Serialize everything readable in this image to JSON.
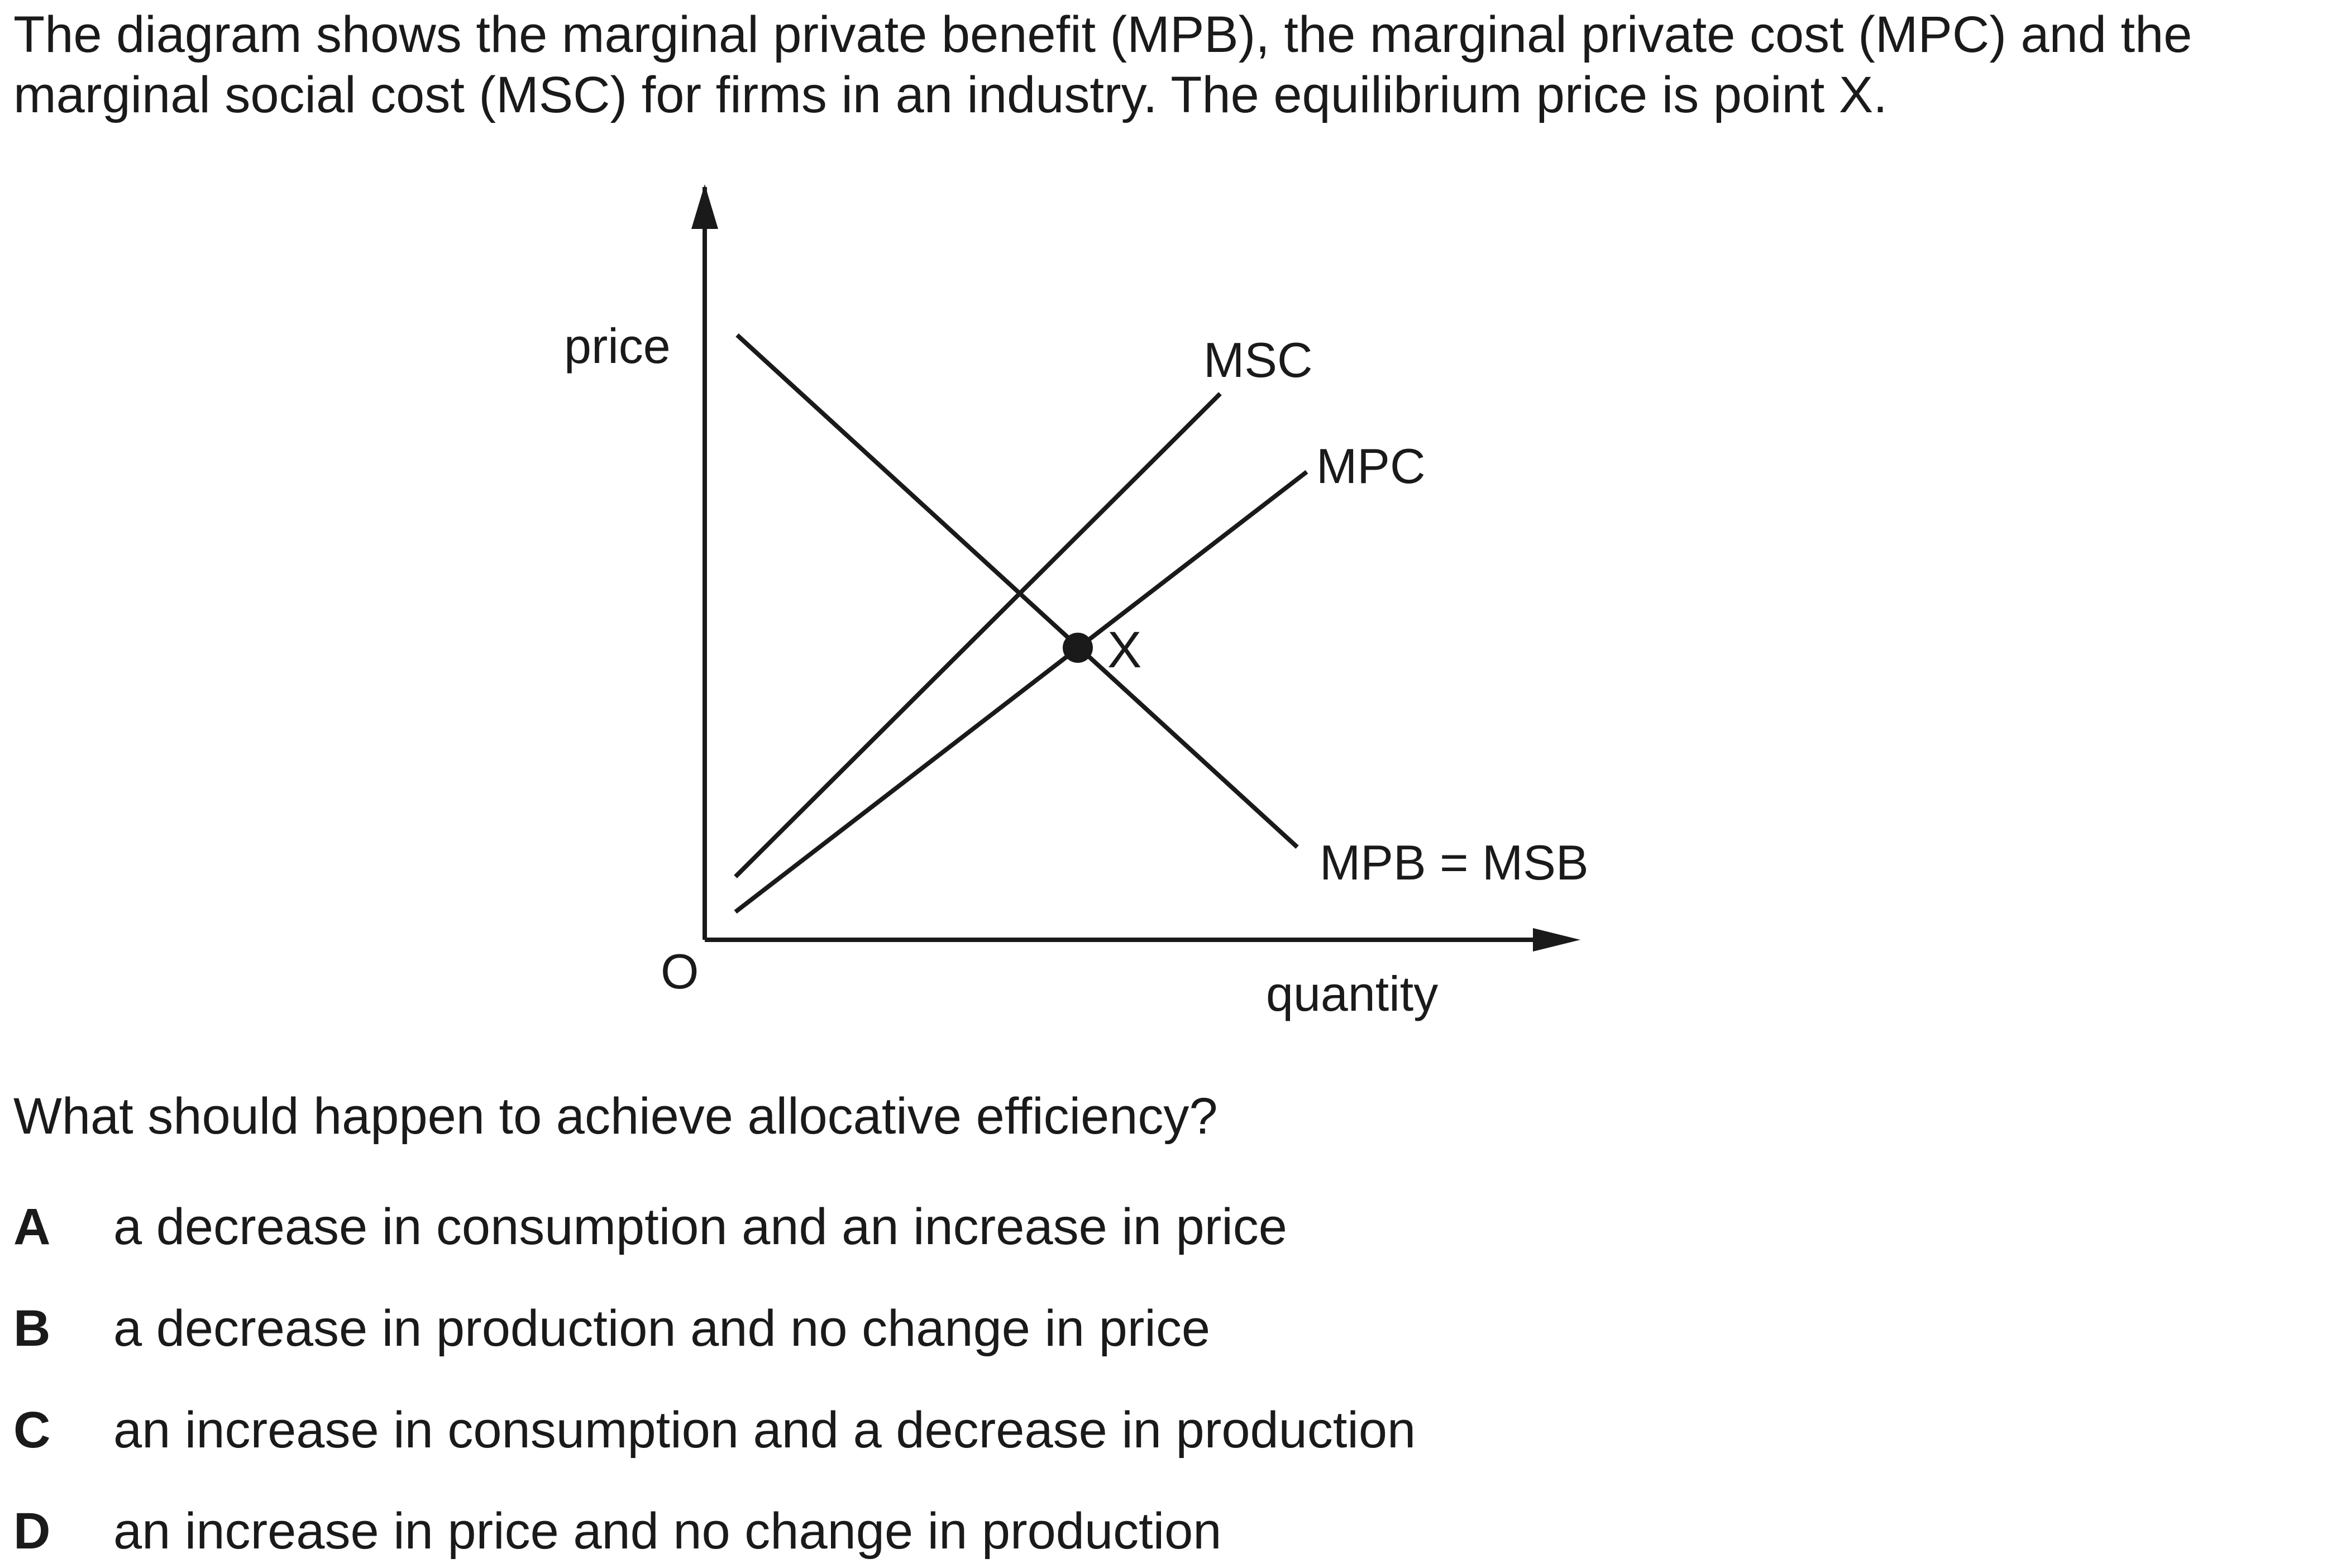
{
  "intro": {
    "line1": "The diagram shows the marginal private benefit (MPB), the marginal private cost (MPC) and the",
    "line2": "marginal social cost (MSC) for firms in an industry. The equilibrium price is point X."
  },
  "diagram": {
    "y_axis_label": "price",
    "x_axis_label": "quantity",
    "origin_label": "O",
    "curves": [
      {
        "id": "msc",
        "label": "MSC"
      },
      {
        "id": "mpc",
        "label": "MPC"
      },
      {
        "id": "mpb",
        "label": "MPB = MSB"
      }
    ],
    "point_label": "X"
  },
  "question": "What should happen to achieve allocative efficiency?",
  "options": [
    {
      "letter": "A",
      "text": "a decrease in consumption and an increase in price"
    },
    {
      "letter": "B",
      "text": "a decrease in production and no change in price"
    },
    {
      "letter": "C",
      "text": "an increase in consumption and a decrease in production"
    },
    {
      "letter": "D",
      "text": "an increase in price and no change in production"
    }
  ]
}
